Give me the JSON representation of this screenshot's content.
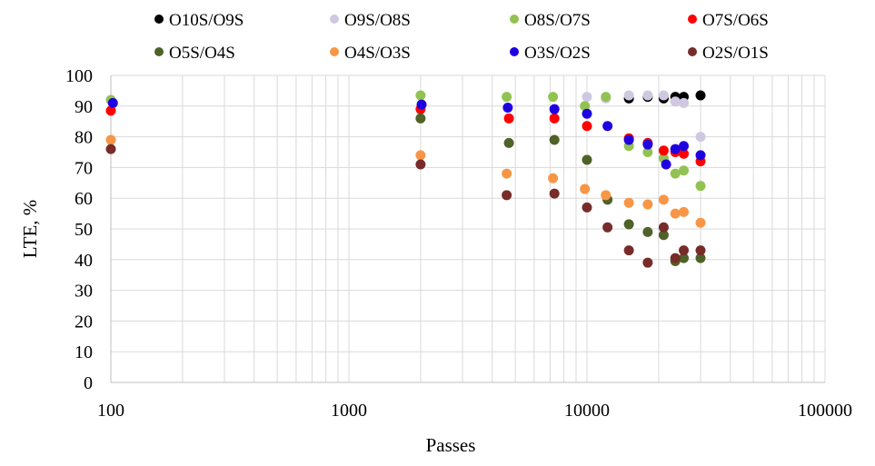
{
  "chart_data": {
    "type": "scatter",
    "title": "",
    "xlabel": "Passes",
    "ylabel": "LTE, %",
    "xscale": "log",
    "xlim": [
      100,
      100000
    ],
    "ylim": [
      0,
      100
    ],
    "grid": "major and minor vertical, major horizontal",
    "legend_position": "top",
    "x_ticks": [
      100,
      1000,
      10000,
      100000
    ],
    "x_tick_labels": [
      "100",
      "1000",
      "10000",
      "100000"
    ],
    "y_ticks": [
      0,
      10,
      20,
      30,
      40,
      50,
      60,
      70,
      80,
      90,
      100
    ],
    "y_tick_labels": [
      "0",
      "10",
      "20",
      "30",
      "40",
      "50",
      "60",
      "70",
      "80",
      "90",
      "100"
    ],
    "series": [
      {
        "name": "O10S/O9S",
        "color": "#000000",
        "x": [
          15000,
          18000,
          21000,
          23500,
          25500,
          30000
        ],
        "y": [
          92.5,
          93.0,
          92.5,
          93.0,
          93.0,
          93.5
        ]
      },
      {
        "name": "O9S/O8S",
        "color": "#d0c8e0",
        "x": [
          10000,
          12000,
          15000,
          18000,
          21000,
          23500,
          25500,
          30000
        ],
        "y": [
          93.0,
          92.5,
          93.5,
          93.5,
          93.5,
          91.5,
          91.0,
          80.0
        ]
      },
      {
        "name": "O8S/O7S",
        "color": "#92c352",
        "x": [
          100,
          2000,
          4600,
          7200,
          9800,
          12000,
          15000,
          18000,
          21000,
          23500,
          25500,
          30000
        ],
        "y": [
          92.0,
          93.5,
          93.0,
          93.0,
          90.0,
          93.0,
          77.0,
          75.0,
          73.0,
          68.0,
          69.0,
          64.0
        ]
      },
      {
        "name": "O7S/O6S",
        "color": "#ff0000",
        "x": [
          100,
          2000,
          4700,
          7300,
          10000,
          15000,
          18000,
          21000,
          23500,
          25500,
          30000
        ],
        "y": [
          88.5,
          89.0,
          86.0,
          86.0,
          83.5,
          79.5,
          78.0,
          75.5,
          75.0,
          74.5,
          72.0
        ]
      },
      {
        "name": "O5S/O4S",
        "color": "#4f6228",
        "x": [
          2000,
          4700,
          7300,
          10000,
          12200,
          15000,
          18000,
          21000,
          23500,
          25500,
          30000
        ],
        "y": [
          86.0,
          78.0,
          79.0,
          72.5,
          59.5,
          51.5,
          49.0,
          48.0,
          39.5,
          40.5,
          40.5
        ]
      },
      {
        "name": "O4S/O3S",
        "color": "#f79646",
        "x": [
          100,
          2000,
          4600,
          7200,
          9800,
          12000,
          15000,
          18000,
          21000,
          23500,
          25500,
          30000
        ],
        "y": [
          79.0,
          74.0,
          68.0,
          66.5,
          63.0,
          61.0,
          58.5,
          58.0,
          59.5,
          55.0,
          55.5,
          52.0
        ]
      },
      {
        "name": "O3S/O2S",
        "color": "#1f00e0",
        "x": [
          102,
          2020,
          4650,
          7300,
          10000,
          12200,
          15000,
          18000,
          21500,
          23500,
          25500,
          30000
        ],
        "y": [
          91.0,
          90.5,
          89.5,
          89.0,
          87.5,
          83.5,
          79.0,
          77.5,
          71.0,
          76.0,
          77.0,
          74.0
        ]
      },
      {
        "name": "O2S/O1S",
        "color": "#772c2a",
        "x": [
          100,
          2000,
          4600,
          7300,
          10000,
          12200,
          15000,
          18000,
          21000,
          23500,
          25500,
          30000
        ],
        "y": [
          76.0,
          71.0,
          61.0,
          61.5,
          57.0,
          50.5,
          43.0,
          39.0,
          50.5,
          40.5,
          43.0,
          43.0
        ]
      }
    ]
  }
}
